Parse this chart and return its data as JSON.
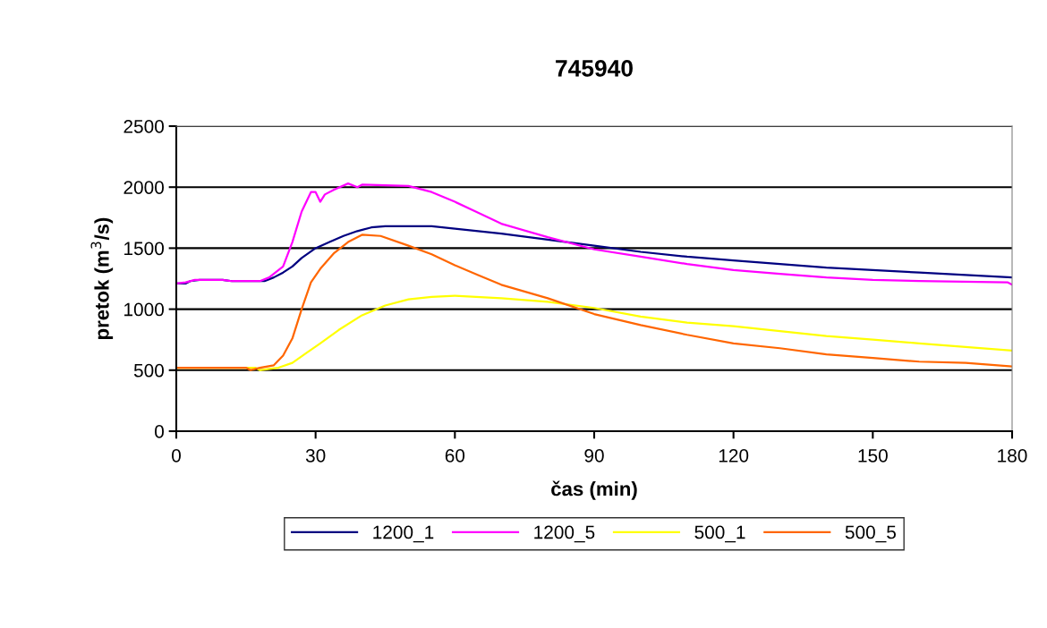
{
  "chart_data": {
    "type": "line",
    "title": "745940",
    "xlabel": "čas (min)",
    "ylabel": "pretok (m$^{3}$/s)",
    "xlim": [
      0,
      180
    ],
    "xticks": [
      0,
      30,
      60,
      90,
      120,
      150,
      180
    ],
    "ylim": [
      0,
      2500
    ],
    "yticks": [
      0,
      500,
      1000,
      1500,
      2000,
      2500
    ],
    "grid": "y",
    "legend": "bottom",
    "marker": "none",
    "line_style": "solid",
    "series": [
      {
        "name": "1200_1",
        "color": "#000080",
        "x": [
          0,
          2,
          3,
          5,
          10,
          12,
          15,
          19,
          21,
          23,
          25,
          27,
          30,
          33,
          36,
          39,
          42,
          45,
          55,
          60,
          70,
          80,
          90,
          100,
          110,
          120,
          130,
          140,
          150,
          160,
          170,
          180
        ],
        "values": [
          1210,
          1210,
          1230,
          1240,
          1240,
          1230,
          1230,
          1230,
          1260,
          1300,
          1350,
          1420,
          1500,
          1550,
          1600,
          1640,
          1670,
          1680,
          1680,
          1660,
          1620,
          1570,
          1520,
          1470,
          1430,
          1400,
          1370,
          1340,
          1320,
          1300,
          1280,
          1260
        ]
      },
      {
        "name": "1200_5",
        "color": "#ff00ff",
        "x": [
          0,
          2,
          4,
          10,
          12,
          18,
          20,
          23,
          25,
          27,
          29,
          30,
          31,
          32,
          34,
          37,
          39,
          40,
          50,
          55,
          60,
          65,
          70,
          80,
          90,
          100,
          110,
          120,
          130,
          140,
          150,
          160,
          179,
          180
        ],
        "values": [
          1210,
          1220,
          1240,
          1240,
          1230,
          1230,
          1260,
          1350,
          1550,
          1800,
          1960,
          1960,
          1880,
          1940,
          1980,
          2030,
          2000,
          2020,
          2010,
          1960,
          1880,
          1790,
          1700,
          1590,
          1490,
          1430,
          1370,
          1320,
          1290,
          1260,
          1240,
          1230,
          1220,
          1200
        ]
      },
      {
        "name": "500_1",
        "color": "#ffff00",
        "x": [
          0,
          17,
          18,
          20,
          22,
          25,
          28,
          31,
          35,
          40,
          45,
          50,
          55,
          60,
          70,
          80,
          90,
          100,
          110,
          120,
          130,
          140,
          150,
          160,
          170,
          180
        ],
        "values": [
          520,
          520,
          500,
          510,
          520,
          560,
          640,
          720,
          830,
          950,
          1030,
          1080,
          1100,
          1110,
          1090,
          1060,
          1010,
          940,
          890,
          860,
          820,
          780,
          750,
          720,
          690,
          660
        ]
      },
      {
        "name": "500_5",
        "color": "#ff6600",
        "x": [
          0,
          15,
          16,
          18,
          21,
          23,
          25,
          27,
          29,
          31,
          34,
          37,
          40,
          44,
          50,
          55,
          60,
          65,
          70,
          80,
          90,
          100,
          110,
          120,
          130,
          140,
          150,
          160,
          170,
          180
        ],
        "values": [
          520,
          520,
          500,
          520,
          540,
          620,
          760,
          1000,
          1220,
          1330,
          1460,
          1550,
          1610,
          1600,
          1520,
          1450,
          1360,
          1280,
          1200,
          1090,
          960,
          870,
          790,
          720,
          680,
          630,
          600,
          570,
          560,
          530
        ]
      }
    ]
  }
}
